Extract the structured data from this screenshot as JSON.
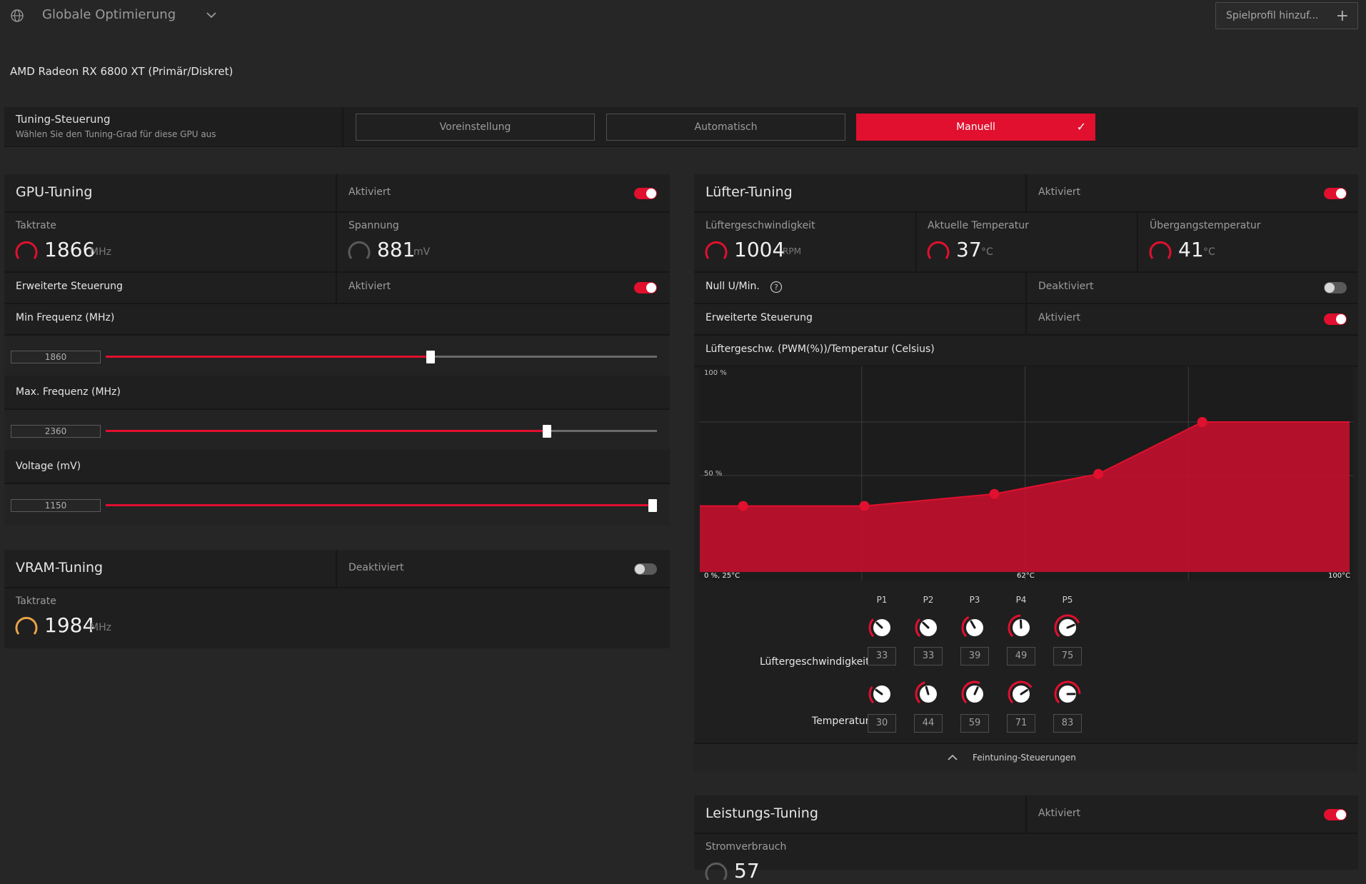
{
  "header": {
    "profile_title": "Globale Optimierung",
    "add_profile_label": "Spielprofil hinzuf...",
    "add_icon": "+"
  },
  "gpu_name": "AMD Radeon RX 6800 XT (Primär/Diskret)",
  "tuning_control": {
    "title": "Tuning-Steuerung",
    "subtitle": "Wählen Sie den Tuning-Grad für diese GPU aus",
    "options": [
      "Voreinstellung",
      "Automatisch",
      "Manuell"
    ],
    "selected": "Manuell"
  },
  "gpu_tuning": {
    "title": "GPU-Tuning",
    "status": "Aktiviert",
    "enabled": true,
    "clock_label": "Taktrate",
    "clock_value": "1866",
    "clock_unit": "MHz",
    "voltage_label": "Spannung",
    "voltage_value": "881",
    "voltage_unit": "mV",
    "advanced_label": "Erweiterte Steuerung",
    "advanced_status": "Aktiviert",
    "advanced_enabled": true,
    "min_freq_label": "Min Frequenz (MHz)",
    "min_freq_value": "1860",
    "min_freq_fraction": 0.59,
    "max_freq_label": "Max. Frequenz (MHz)",
    "max_freq_value": "2360",
    "max_freq_fraction": 0.8,
    "voltage_mv_label": "Voltage (mV)",
    "voltage_mv_value": "1150",
    "voltage_mv_fraction": 1.0
  },
  "vram_tuning": {
    "title": "VRAM-Tuning",
    "status": "Deaktiviert",
    "enabled": false,
    "clock_label": "Taktrate",
    "clock_value": "1984",
    "clock_unit": "MHz"
  },
  "fan_tuning": {
    "title": "Lüfter-Tuning",
    "status": "Aktiviert",
    "enabled": true,
    "fan_speed_label": "Lüftergeschwindigkeit",
    "fan_speed_value": "1004",
    "fan_speed_unit": "RPM",
    "current_temp_label": "Aktuelle Temperatur",
    "current_temp_value": "37",
    "current_temp_unit": "°C",
    "junction_temp_label": "Übergangstemperatur",
    "junction_temp_value": "41",
    "junction_temp_unit": "°C",
    "zero_rpm_label": "Null U/Min.",
    "zero_rpm_status": "Deaktiviert",
    "zero_rpm_enabled": false,
    "advanced_label": "Erweiterte Steuerung",
    "advanced_status": "Aktiviert",
    "advanced_enabled": true,
    "curve_title": "Lüftergeschw. (PWM(%))/Temperatur (Celsius)",
    "axis_labels": {
      "y_top": "100 %",
      "y_mid": "50 %",
      "origin": "0 %, 25°C",
      "x_mid": "62°C",
      "x_end": "100°C"
    },
    "row_label_speed": "Lüftergeschwindigkeit",
    "row_label_temp": "Temperatur",
    "points": [
      {
        "label": "P1",
        "speed": "33",
        "temp": "30"
      },
      {
        "label": "P2",
        "speed": "33",
        "temp": "44"
      },
      {
        "label": "P3",
        "speed": "39",
        "temp": "59"
      },
      {
        "label": "P4",
        "speed": "49",
        "temp": "71"
      },
      {
        "label": "P5",
        "speed": "75",
        "temp": "83"
      }
    ],
    "fine_tune_label": "Feintuning-Steuerungen"
  },
  "chart_data": {
    "type": "area",
    "x": [
      30,
      44,
      59,
      71,
      83
    ],
    "y": [
      33,
      33,
      39,
      49,
      75
    ],
    "xlim": [
      25,
      100
    ],
    "ylim": [
      0,
      100
    ],
    "xlabel": "Temperatur (Celsius)",
    "ylabel": "Lüftergeschw. (PWM(%))",
    "grid": true
  },
  "power_tuning": {
    "title": "Leistungs-Tuning",
    "status": "Aktiviert",
    "enabled": true,
    "power_label": "Stromverbrauch",
    "power_value": "57"
  },
  "colors": {
    "accent": "#e0102e",
    "vram_gauge": "#e8a24a"
  }
}
